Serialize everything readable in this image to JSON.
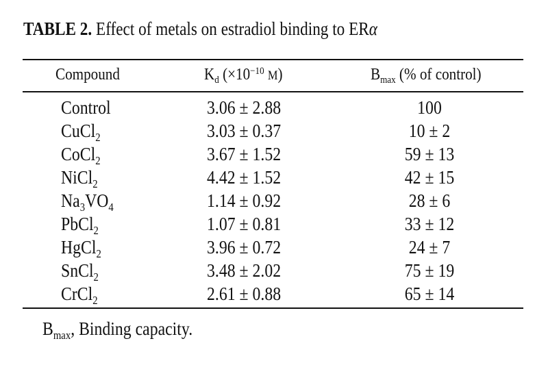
{
  "caption": {
    "label": "TABLE 2.",
    "text": "Effect of metals on estradiol binding to ER",
    "alpha": "α"
  },
  "header": {
    "compound": "Compound",
    "kd_main": "K",
    "kd_sub": "d",
    "kd_unit_open": " (×10",
    "kd_unit_exp": "−10",
    "kd_unit_close": " ",
    "kd_unit_m": "M",
    "kd_unit_paren": ")",
    "bmax_main": "B",
    "bmax_sub": "max",
    "bmax_rest": " (% of control)"
  },
  "rows": [
    {
      "name": "Control",
      "sub": "",
      "name2": "",
      "sub2": "",
      "kd": "3.06 ± 2.88",
      "bmax": "100"
    },
    {
      "name": "CuCl",
      "sub": "2",
      "name2": "",
      "sub2": "",
      "kd": "3.03 ± 0.37",
      "bmax": "10 ± 2"
    },
    {
      "name": "CoCl",
      "sub": "2",
      "name2": "",
      "sub2": "",
      "kd": "3.67 ± 1.52",
      "bmax": "59 ± 13"
    },
    {
      "name": "NiCl",
      "sub": "2",
      "name2": "",
      "sub2": "",
      "kd": "4.42 ± 1.52",
      "bmax": "42 ± 15"
    },
    {
      "name": "Na",
      "sub": "3",
      "name2": "VO",
      "sub2": "4",
      "kd": "1.14 ± 0.92",
      "bmax": "28 ± 6"
    },
    {
      "name": "PbCl",
      "sub": "2",
      "name2": "",
      "sub2": "",
      "kd": "1.07 ± 0.81",
      "bmax": "33 ± 12"
    },
    {
      "name": "HgCl",
      "sub": "2",
      "name2": "",
      "sub2": "",
      "kd": "3.96 ± 0.72",
      "bmax": "24 ± 7"
    },
    {
      "name": "SnCl",
      "sub": "2",
      "name2": "",
      "sub2": "",
      "kd": "3.48 ± 2.02",
      "bmax": "75 ± 19"
    },
    {
      "name": "CrCl",
      "sub": "2",
      "name2": "",
      "sub2": "",
      "kd": "2.61 ± 0.88",
      "bmax": "65 ± 14"
    }
  ],
  "footnote": {
    "main": "B",
    "sub": "max",
    "rest": ", Binding capacity."
  }
}
